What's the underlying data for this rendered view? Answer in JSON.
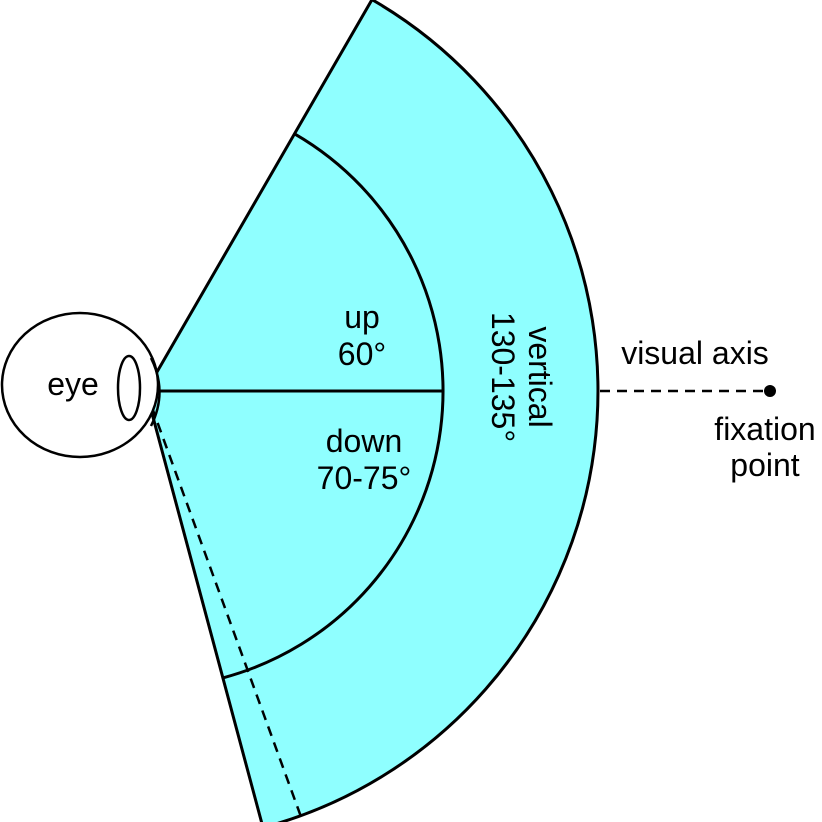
{
  "labels": {
    "eye": "eye",
    "up_title": "up",
    "up_value": "60°",
    "down_title": "down",
    "down_value": "70-75°",
    "vertical_title": "vertical",
    "vertical_value": "130-135°",
    "visual_axis": "visual axis",
    "fixation_line1": "fixation",
    "fixation_line2": "point"
  },
  "angles_deg": {
    "up": 60,
    "down_min": 70,
    "down_max": 75,
    "vertical_min": 130,
    "vertical_max": 135
  },
  "colors": {
    "field_fill": "#8FFFFF",
    "stroke": "#000000",
    "background": "#FFFFFF"
  }
}
